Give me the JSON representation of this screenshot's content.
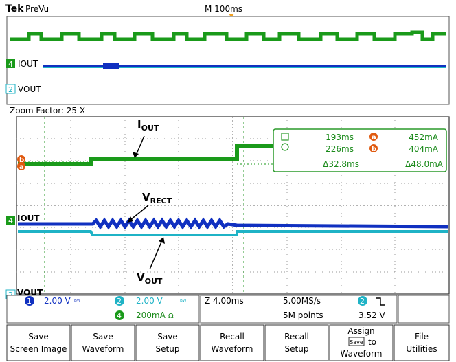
{
  "header": {
    "brand": "Tek",
    "mode": "PreVu",
    "timebase": "M 100ms"
  },
  "overview": {
    "ch4_label": "IOUT",
    "ch2_label": "VOUT",
    "ch4_marker": "4",
    "ch2_marker": "2"
  },
  "zoom": {
    "factor_label": "Zoom Factor: 25 X"
  },
  "annotations": {
    "iout_main": "I",
    "iout_sub": "OUT",
    "vrect_main": "V",
    "vrect_sub": "RECT",
    "vout_main": "V",
    "vout_sub": "OUT",
    "ch4_label": "IOUT",
    "ch2_label": "VOUT"
  },
  "cursors": {
    "marker_a": "a",
    "marker_b": "b",
    "t1": "193ms",
    "t2": "226ms",
    "dt": "Δ32.8ms",
    "v1": "452mA",
    "v2": "404mA",
    "dv": "Δ48.0mA"
  },
  "status": {
    "ch1_num": "1",
    "ch1_scale": "2.00 V",
    "ch2_num": "2",
    "ch2_scale": "2.00 V",
    "ch4_num": "4",
    "ch4_scale": "200mA",
    "zoom_time": "Z 4.00ms",
    "sample_rate": "5.00MS/s",
    "record": "5M points",
    "trig_ch": "2",
    "trig_level": "3.52 V"
  },
  "buttons": [
    {
      "line1": "Save",
      "line2": "Screen Image"
    },
    {
      "line1": "Save",
      "line2": "Waveform"
    },
    {
      "line1": "Save",
      "line2": "Setup"
    },
    {
      "line1": "Recall",
      "line2": "Waveform"
    },
    {
      "line1": "Recall",
      "line2": "Setup"
    },
    {
      "line1": "Assign",
      "line2": "to",
      "line3": "Waveform",
      "badge": "Save"
    },
    {
      "line1": "File",
      "line2": "Utilities"
    }
  ],
  "colors": {
    "ch1": "#1030c0",
    "ch2": "#1fb3c6",
    "ch4": "#1a9a1a",
    "cursor_marker": "#e05a10"
  }
}
